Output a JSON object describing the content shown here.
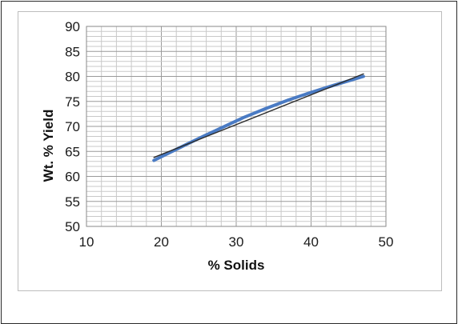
{
  "chart_data": {
    "type": "line",
    "xlabel": "% Solids",
    "ylabel": "Wt. % Yield",
    "xlim": [
      10,
      50
    ],
    "ylim": [
      50,
      90
    ],
    "x_ticks": [
      "10",
      "20",
      "30",
      "40",
      "50"
    ],
    "y_ticks": [
      "50",
      "55",
      "60",
      "65",
      "70",
      "75",
      "80",
      "85",
      "90"
    ],
    "grid": true,
    "series": [
      {
        "color": "#4a7bc4",
        "x": [
          19,
          22,
          25,
          28,
          31,
          34,
          37,
          40,
          43,
          47
        ],
        "y": [
          63.2,
          65.4,
          67.6,
          69.7,
          71.8,
          73.6,
          75.3,
          76.8,
          78.2,
          80.0
        ]
      },
      {
        "color": "#2b2b2b",
        "x": [
          19,
          47
        ],
        "y": [
          63.8,
          80.5
        ]
      }
    ]
  }
}
